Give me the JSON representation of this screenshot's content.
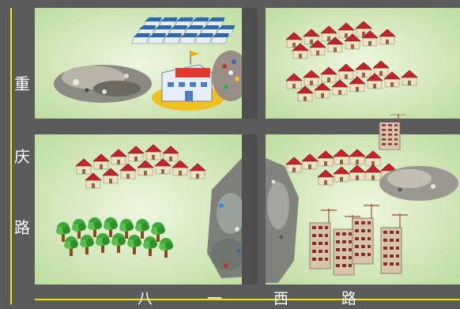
{
  "labels": {
    "vertical_road": [
      "重",
      "庆",
      "路"
    ],
    "horizontal_road": [
      "八",
      "一",
      "西",
      "路"
    ]
  },
  "colors": {
    "road": "#5b5b5b",
    "road_line": "#f2e600",
    "grass": "#d6ebb8",
    "roof": "#c2242a",
    "wall": "#efe2c2",
    "tree": "#3fa83a",
    "trunk": "#8a4a1c"
  },
  "icons": [
    "villa-cluster-icon",
    "school-icon",
    "garbage-dump-icon",
    "tree-grove-icon",
    "highrise-construction-icon",
    "factory-rows-icon"
  ]
}
